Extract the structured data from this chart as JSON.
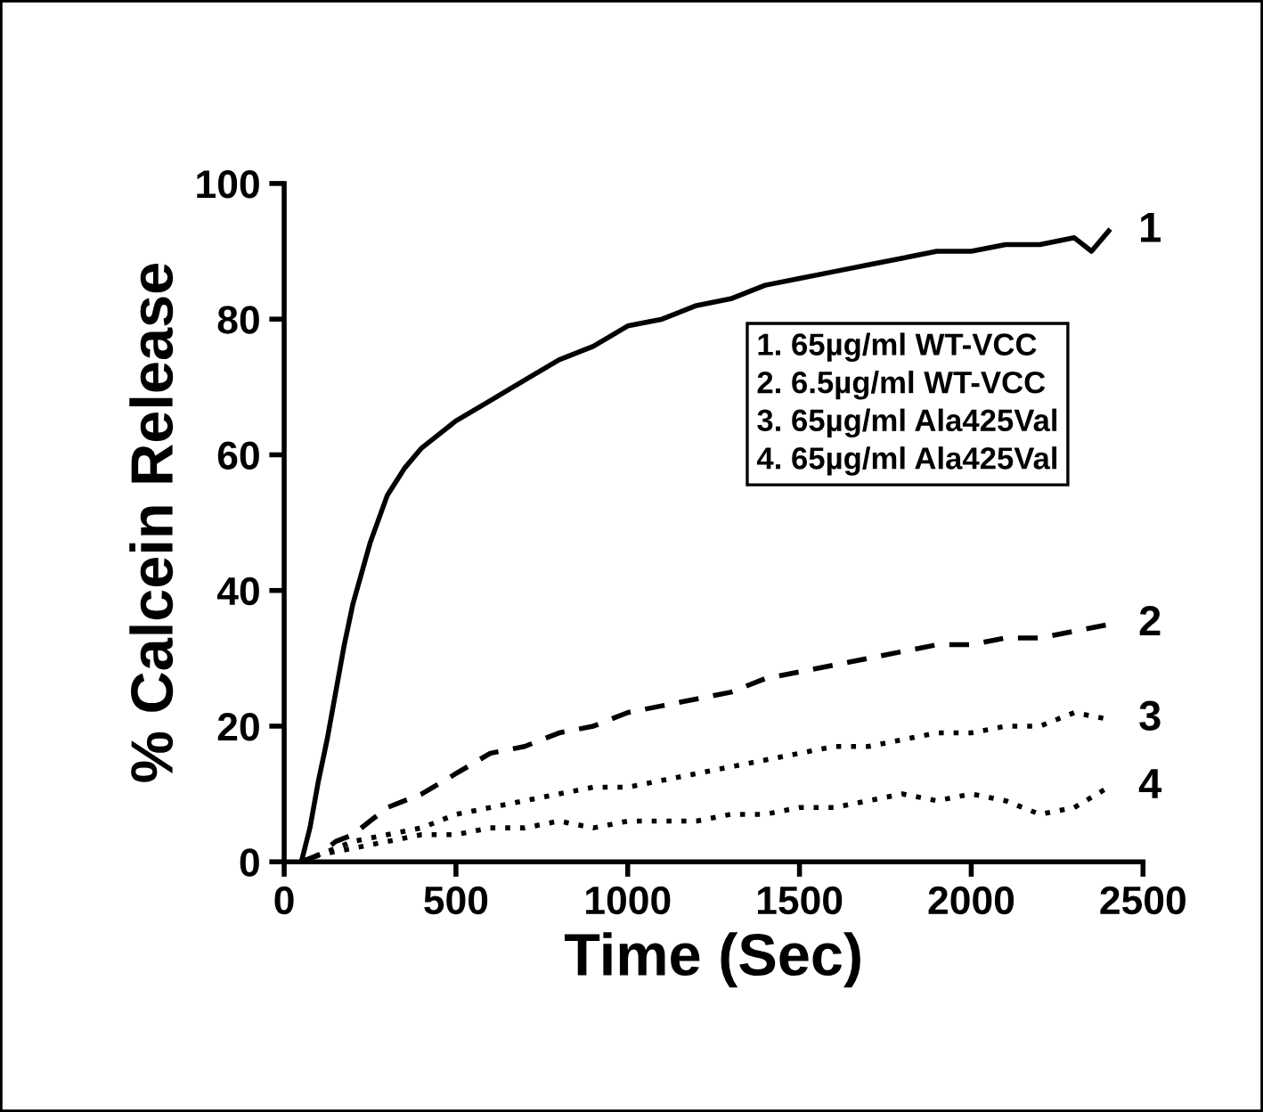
{
  "chart_data": {
    "type": "line",
    "xlabel": "Time (Sec)",
    "ylabel": "% Calcein Release",
    "xlim": [
      0,
      2500
    ],
    "xticks": [
      0,
      500,
      1000,
      1500,
      2000,
      2500
    ],
    "ylim": [
      0,
      100
    ],
    "yticks": [
      0,
      20,
      40,
      60,
      80,
      100
    ],
    "series": [
      {
        "name": "1",
        "color": "#000000",
        "line_style": "solid",
        "x": [
          50,
          75,
          100,
          125,
          150,
          175,
          200,
          250,
          300,
          350,
          400,
          450,
          500,
          600,
          700,
          800,
          900,
          1000,
          1100,
          1200,
          1300,
          1400,
          1500,
          1600,
          1700,
          1800,
          1900,
          2000,
          2100,
          2200,
          2300,
          2350,
          2400
        ],
        "values": [
          0,
          5,
          12,
          18,
          25,
          32,
          38,
          47,
          54,
          58,
          61,
          63,
          65,
          68,
          71,
          74,
          76,
          79,
          80,
          82,
          83,
          85,
          86,
          87,
          88,
          89,
          90,
          90,
          91,
          91,
          92,
          90,
          93
        ]
      },
      {
        "name": "2",
        "color": "#000000",
        "line_style": "dashed",
        "x": [
          50,
          100,
          150,
          200,
          250,
          300,
          400,
          500,
          600,
          700,
          800,
          900,
          1000,
          1100,
          1200,
          1300,
          1400,
          1500,
          1600,
          1700,
          1800,
          1900,
          2000,
          2100,
          2200,
          2300,
          2400
        ],
        "values": [
          0,
          1,
          3,
          4,
          6,
          8,
          10,
          13,
          16,
          17,
          19,
          20,
          22,
          23,
          24,
          25,
          27,
          28,
          29,
          30,
          31,
          32,
          32,
          33,
          33,
          34,
          35
        ]
      },
      {
        "name": "3",
        "color": "#000000",
        "line_style": "dotted",
        "x": [
          50,
          100,
          200,
          300,
          400,
          500,
          600,
          700,
          800,
          900,
          1000,
          1100,
          1200,
          1300,
          1400,
          1500,
          1600,
          1700,
          1800,
          1900,
          2000,
          2100,
          2200,
          2300,
          2400
        ],
        "values": [
          0,
          1,
          3,
          4,
          5,
          7,
          8,
          9,
          10,
          11,
          11,
          12,
          13,
          14,
          15,
          16,
          17,
          17,
          18,
          19,
          19,
          20,
          20,
          22,
          21
        ]
      },
      {
        "name": "4",
        "color": "#000000",
        "line_style": "dotted",
        "x": [
          50,
          100,
          200,
          300,
          400,
          500,
          600,
          700,
          800,
          900,
          1000,
          1100,
          1200,
          1300,
          1400,
          1500,
          1600,
          1700,
          1800,
          1900,
          2000,
          2100,
          2200,
          2300,
          2400
        ],
        "values": [
          0,
          1,
          2,
          3,
          4,
          4,
          5,
          5,
          6,
          5,
          6,
          6,
          6,
          7,
          7,
          8,
          8,
          9,
          10,
          9,
          10,
          9,
          7,
          8,
          11
        ]
      }
    ],
    "annotations": [
      "1. 65µg/ml WT-VCC",
      "2. 6.5µg/ml WT-VCC",
      "3. 65µg/ml Ala425Val",
      "4. 65µg/ml Ala425Val"
    ]
  }
}
